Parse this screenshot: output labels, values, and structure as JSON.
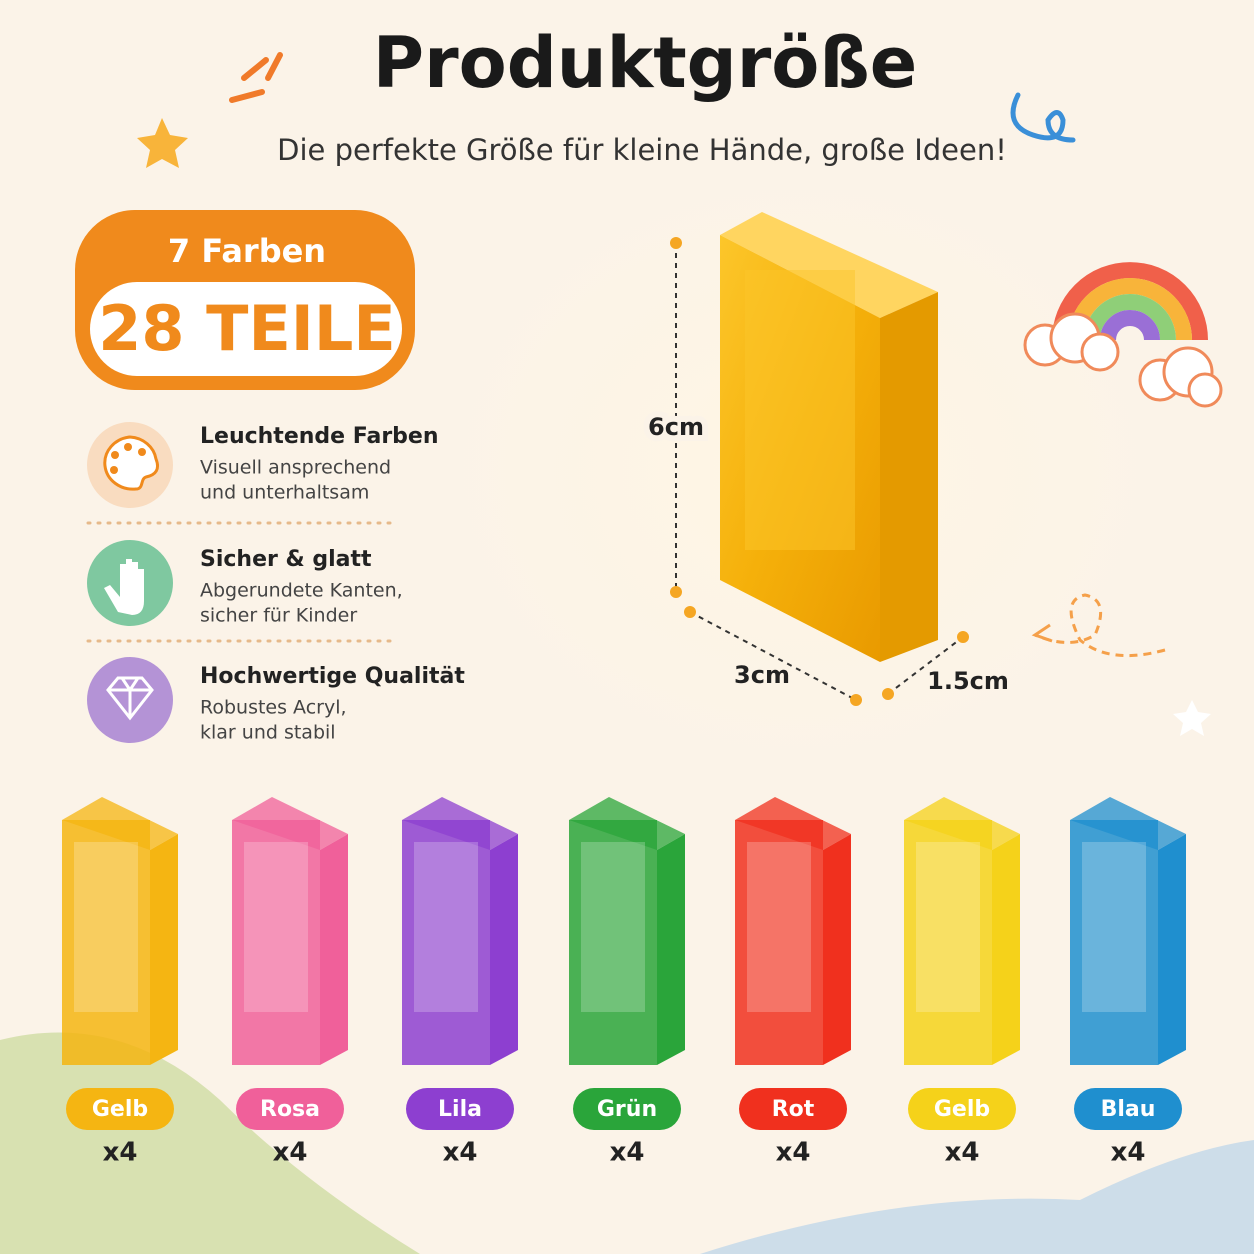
{
  "header": {
    "title": "Produktgröße",
    "subtitle": "Die perfekte Größe für kleine Hände, große Ideen!"
  },
  "badge": {
    "top": "7 Farben",
    "main": "28 TEILE"
  },
  "features": [
    {
      "title": "Leuchtende Farben",
      "lines": [
        "Visuell ansprechend",
        "und unterhaltsam"
      ]
    },
    {
      "title": "Sicher & glatt",
      "lines": [
        "Abgerundete Kanten,",
        "sicher für Kinder"
      ]
    },
    {
      "title": "Hochwertige Qualität",
      "lines": [
        "Robustes Acryl,",
        "klar und stabil"
      ]
    }
  ],
  "dimensions": {
    "height": "6cm",
    "width": "3cm",
    "depth": "1.5cm"
  },
  "colors": [
    {
      "label": "Gelb",
      "count": "x4",
      "color": "#f5b512"
    },
    {
      "label": "Rosa",
      "count": "x4",
      "color": "#f0609a"
    },
    {
      "label": "Lila",
      "count": "x4",
      "color": "#8d3fd0"
    },
    {
      "label": "Grün",
      "count": "x4",
      "color": "#2aa53a"
    },
    {
      "label": "Rot",
      "count": "x4",
      "color": "#f0301e"
    },
    {
      "label": "Gelb",
      "count": "x4",
      "color": "#f5d21a"
    },
    {
      "label": "Blau",
      "count": "x4",
      "color": "#1f8fcf"
    }
  ]
}
